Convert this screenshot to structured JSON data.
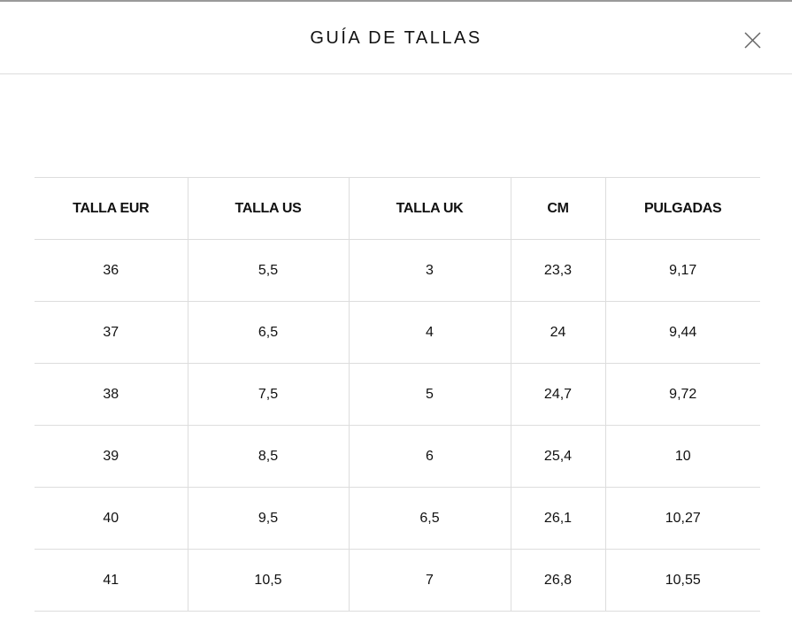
{
  "header": {
    "title": "GUÍA DE TALLAS",
    "close_icon": "close-icon"
  },
  "table": {
    "columns": [
      "TALLA EUR",
      "TALLA US",
      "TALLA UK",
      "CM",
      "PULGADAS"
    ],
    "rows": [
      [
        "36",
        "5,5",
        "3",
        "23,3",
        "9,17"
      ],
      [
        "37",
        "6,5",
        "4",
        "24",
        "9,44"
      ],
      [
        "38",
        "7,5",
        "5",
        "24,7",
        "9,72"
      ],
      [
        "39",
        "8,5",
        "6",
        "25,4",
        "10"
      ],
      [
        "40",
        "9,5",
        "6,5",
        "26,1",
        "10,27"
      ],
      [
        "41",
        "10,5",
        "7",
        "26,8",
        "10,55"
      ]
    ]
  }
}
